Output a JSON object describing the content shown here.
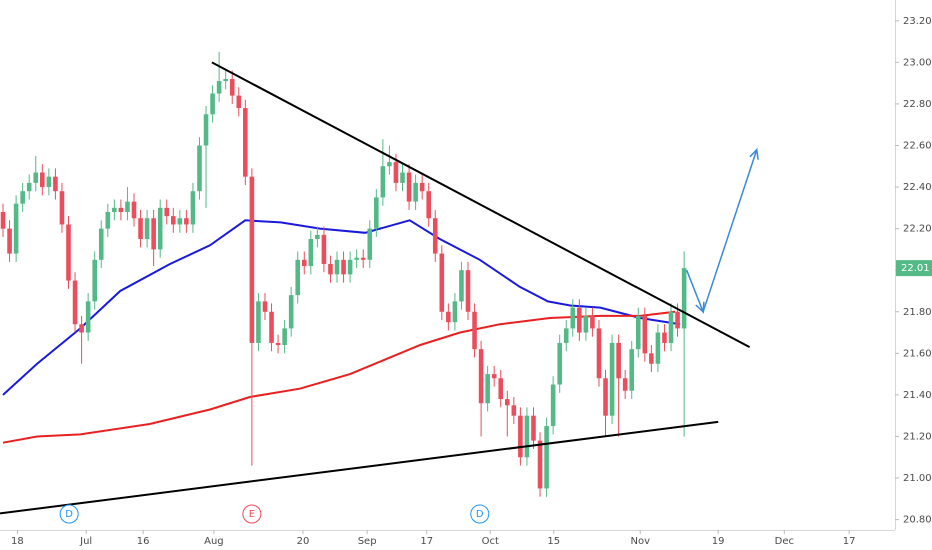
{
  "chart_data": {
    "type": "candlestick",
    "xlim": [
      -0.46,
      136.2
    ],
    "ylim": [
      20.75,
      23.3
    ],
    "xticks": [
      {
        "value": 2.2,
        "label": "18"
      },
      {
        "value": 12.7,
        "label": "Jul"
      },
      {
        "value": 21.4,
        "label": "16"
      },
      {
        "value": 32.2,
        "label": "Aug"
      },
      {
        "value": 45.8,
        "label": "20"
      },
      {
        "value": 55.6,
        "label": "Sep"
      },
      {
        "value": 64.7,
        "label": "17"
      },
      {
        "value": 74.4,
        "label": "Oct"
      },
      {
        "value": 84.1,
        "label": "15"
      },
      {
        "value": 97.3,
        "label": "Nov"
      },
      {
        "value": 109.2,
        "label": "19"
      },
      {
        "value": 119.3,
        "label": "Dec"
      },
      {
        "value": 129.2,
        "label": "17"
      }
    ],
    "yticks": [
      {
        "value": 20.8,
        "label": "20.80"
      },
      {
        "value": 21.0,
        "label": "21.00"
      },
      {
        "value": 21.2,
        "label": "21.20"
      },
      {
        "value": 21.4,
        "label": "21.40"
      },
      {
        "value": 21.6,
        "label": "21.60"
      },
      {
        "value": 21.8,
        "label": "21.80"
      },
      {
        "value": 22.0,
        "label": "22.00"
      },
      {
        "value": 22.2,
        "label": "22.20"
      },
      {
        "value": 22.4,
        "label": "22.40"
      },
      {
        "value": 22.6,
        "label": "22.60"
      },
      {
        "value": 22.8,
        "label": "22.80"
      },
      {
        "value": 23.0,
        "label": "23.00"
      },
      {
        "value": 23.2,
        "label": "23.20"
      }
    ],
    "up_color": "#53b987",
    "down_color": "#eb4d5c",
    "x": [
      0,
      1,
      2,
      3,
      4,
      5,
      6,
      7,
      8,
      9,
      10,
      11,
      12,
      13,
      14,
      15,
      16,
      17,
      18,
      19,
      20,
      21,
      22,
      23,
      24,
      25,
      26,
      27,
      28,
      29,
      30,
      31,
      32,
      33,
      34,
      35,
      36,
      37,
      38,
      39,
      40,
      41,
      42,
      43,
      44,
      45,
      46,
      47,
      48,
      49,
      50,
      51,
      52,
      53,
      54,
      55,
      56,
      57,
      58,
      59,
      60,
      61,
      62,
      63,
      64,
      65,
      66,
      67,
      68,
      69,
      70,
      71,
      72,
      73,
      74,
      75,
      76,
      77,
      78,
      79,
      80,
      81,
      82,
      83,
      84,
      85,
      86,
      87,
      88,
      89,
      90,
      91,
      92,
      93,
      94,
      95,
      96,
      97,
      98,
      99,
      100,
      101,
      102,
      103,
      104
    ],
    "open": [
      22.28,
      22.2,
      22.08,
      22.32,
      22.38,
      22.42,
      22.47,
      22.4,
      22.45,
      22.38,
      22.22,
      21.95,
      21.74,
      21.7,
      21.85,
      22.05,
      22.2,
      22.28,
      22.3,
      22.28,
      22.33,
      22.25,
      22.15,
      22.25,
      22.1,
      22.3,
      22.26,
      22.22,
      22.25,
      22.22,
      22.38,
      22.6,
      22.75,
      22.85,
      22.91,
      22.92,
      22.84,
      22.78,
      22.45,
      21.65,
      21.85,
      21.8,
      21.65,
      21.64,
      21.72,
      21.88,
      22.05,
      22.02,
      22.15,
      22.17,
      22.03,
      21.98,
      22.05,
      21.98,
      22.05,
      22.06,
      22.05,
      22.2,
      22.35,
      22.5,
      22.52,
      22.42,
      22.47,
      22.33,
      22.42,
      22.38,
      22.25,
      22.08,
      21.8,
      21.75,
      21.85,
      22.0,
      21.8,
      21.62,
      21.36,
      21.5,
      21.48,
      21.38,
      21.35,
      21.3,
      21.1,
      21.3,
      21.18,
      20.95,
      21.25,
      21.45,
      21.65,
      21.72,
      21.82,
      21.7,
      21.78,
      21.72,
      21.48,
      21.3,
      21.65,
      21.48,
      21.42,
      21.62,
      21.78,
      21.6,
      21.55,
      21.7,
      21.65,
      21.8,
      21.72
    ],
    "high": [
      22.32,
      22.24,
      22.36,
      22.42,
      22.46,
      22.55,
      22.51,
      22.49,
      22.49,
      22.42,
      22.26,
      21.99,
      21.78,
      21.89,
      22.09,
      22.24,
      22.32,
      22.34,
      22.34,
      22.4,
      22.37,
      22.29,
      22.29,
      22.29,
      22.34,
      22.34,
      22.3,
      22.29,
      22.29,
      22.42,
      22.64,
      22.79,
      22.89,
      23.05,
      22.96,
      22.96,
      22.88,
      22.82,
      22.49,
      21.89,
      21.89,
      21.84,
      21.69,
      21.76,
      21.92,
      22.09,
      22.09,
      22.19,
      22.21,
      22.21,
      22.07,
      22.09,
      22.09,
      22.09,
      22.1,
      22.1,
      22.24,
      22.39,
      22.63,
      22.6,
      22.56,
      22.51,
      22.51,
      22.46,
      22.46,
      22.42,
      22.29,
      22.12,
      21.84,
      21.89,
      22.04,
      22.04,
      21.84,
      21.66,
      21.54,
      21.54,
      21.52,
      21.42,
      21.39,
      21.34,
      21.34,
      21.34,
      21.22,
      21.29,
      21.49,
      21.69,
      21.76,
      21.86,
      21.86,
      21.82,
      21.82,
      21.76,
      21.52,
      21.69,
      21.69,
      21.52,
      21.66,
      21.82,
      21.82,
      21.64,
      21.74,
      21.74,
      21.84,
      21.84,
      22.09
    ],
    "low": [
      22.16,
      22.04,
      22.04,
      22.28,
      22.34,
      22.38,
      22.36,
      22.36,
      22.34,
      22.18,
      21.91,
      21.7,
      21.55,
      21.66,
      21.81,
      22.01,
      22.16,
      22.24,
      22.24,
      22.24,
      22.21,
      22.11,
      22.11,
      22.02,
      22.06,
      22.22,
      22.18,
      22.18,
      22.18,
      22.18,
      22.34,
      22.3,
      22.71,
      22.81,
      22.87,
      22.8,
      22.74,
      22.41,
      21.06,
      21.61,
      21.76,
      21.61,
      21.6,
      21.6,
      21.68,
      21.84,
      21.98,
      21.98,
      22.11,
      21.99,
      21.94,
      21.94,
      21.94,
      21.94,
      22.01,
      22.01,
      22.01,
      22.16,
      22.31,
      22.46,
      22.38,
      22.38,
      22.29,
      22.29,
      22.34,
      22.21,
      22.04,
      21.76,
      21.71,
      21.71,
      21.81,
      21.76,
      21.58,
      21.2,
      21.32,
      21.44,
      21.34,
      21.2,
      21.26,
      21.06,
      21.06,
      21.14,
      20.91,
      20.91,
      21.21,
      21.41,
      21.61,
      21.68,
      21.66,
      21.66,
      21.68,
      21.44,
      21.2,
      21.26,
      21.2,
      21.38,
      21.38,
      21.58,
      21.56,
      21.51,
      21.51,
      21.61,
      21.61,
      21.68,
      21.2
    ],
    "close": [
      22.2,
      22.08,
      22.32,
      22.38,
      22.42,
      22.47,
      22.4,
      22.45,
      22.38,
      22.22,
      21.95,
      21.74,
      21.7,
      21.85,
      22.05,
      22.2,
      22.28,
      22.3,
      22.28,
      22.33,
      22.25,
      22.15,
      22.25,
      22.1,
      22.3,
      22.26,
      22.22,
      22.25,
      22.22,
      22.38,
      22.6,
      22.75,
      22.85,
      22.91,
      22.92,
      22.84,
      22.78,
      22.45,
      21.65,
      21.85,
      21.8,
      21.65,
      21.64,
      21.72,
      21.88,
      22.05,
      22.02,
      22.15,
      22.17,
      22.03,
      21.98,
      22.05,
      21.98,
      22.05,
      22.06,
      22.05,
      22.2,
      22.35,
      22.5,
      22.52,
      22.42,
      22.47,
      22.33,
      22.42,
      22.38,
      22.25,
      22.08,
      21.8,
      21.75,
      21.85,
      22.0,
      21.8,
      21.62,
      21.36,
      21.5,
      21.48,
      21.38,
      21.35,
      21.3,
      21.1,
      21.3,
      21.18,
      20.95,
      21.25,
      21.45,
      21.65,
      21.72,
      21.82,
      21.7,
      21.78,
      21.72,
      21.48,
      21.3,
      21.65,
      21.48,
      21.42,
      21.62,
      21.78,
      21.6,
      21.55,
      21.7,
      21.65,
      21.8,
      21.72,
      22.01
    ],
    "moving_averages": [
      {
        "color": "#1a1adb",
        "x": [
          0,
          5.2,
          11.8,
          17.9,
          25.5,
          31.6,
          37,
          42.4,
          48.4,
          55.3,
          62.1,
          66.7,
          72.8,
          78.9,
          83.2,
          86.6,
          91.2,
          97.3,
          103.4
        ],
        "values": [
          21.4,
          21.55,
          21.72,
          21.9,
          22.03,
          22.12,
          22.24,
          22.23,
          22.2,
          22.18,
          22.24,
          22.15,
          22.05,
          21.92,
          21.85,
          21.83,
          21.82,
          21.77,
          21.74
        ]
      },
      {
        "color": "#e82020",
        "x": [
          0,
          5.2,
          11.8,
          22.4,
          31.6,
          37.7,
          45.3,
          53,
          57.6,
          63.7,
          69.8,
          75.9,
          83.5,
          91.2,
          97.3,
          102.6
        ],
        "values": [
          21.17,
          21.2,
          21.21,
          21.26,
          21.33,
          21.39,
          21.43,
          21.5,
          21.56,
          21.64,
          21.7,
          21.74,
          21.77,
          21.78,
          21.78,
          21.8
        ]
      }
    ],
    "trendlines": [
      {
        "color": "#000000",
        "x": [
          31.9,
          114
        ],
        "values": [
          23.0,
          21.63
        ]
      },
      {
        "color": "#000000",
        "x": [
          -0.46,
          109.2
        ],
        "values": [
          20.83,
          21.27
        ]
      }
    ],
    "arrow": {
      "color": "#3a8ad8",
      "x": [
        104.4,
        106.9,
        115.1
      ],
      "values": [
        22.0,
        21.8,
        22.58
      ]
    },
    "events": [
      {
        "x": 10.1,
        "label": "D",
        "color": "#2196f3"
      },
      {
        "x": 38,
        "label": "E",
        "color": "#eb4d5c"
      },
      {
        "x": 72.8,
        "label": "D",
        "color": "#2196f3"
      }
    ],
    "last_price": {
      "value": 22.01,
      "label": "22.01",
      "color": "#53b987"
    }
  }
}
